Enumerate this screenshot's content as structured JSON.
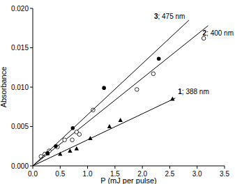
{
  "chart_data": {
    "type": "scatter",
    "x_label": "P (mJ per pulse)",
    "y_label": "Absorbance",
    "xlim": [
      0,
      3.5
    ],
    "xticks": [
      {
        "value": 0,
        "label": "0.0"
      },
      {
        "value": 0.5,
        "label": "0.5"
      },
      {
        "value": 1,
        "label": "1.0"
      },
      {
        "value": 1.5,
        "label": "1.5"
      },
      {
        "value": 2,
        "label": "2.0"
      },
      {
        "value": 2.5,
        "label": "2.5"
      },
      {
        "value": 3,
        "label": "3.0"
      },
      {
        "value": 3.5,
        "label": "3.5"
      }
    ],
    "ylim": [
      0,
      0.02
    ],
    "yticks": [
      {
        "value": 0,
        "label": "0.000"
      },
      {
        "value": 0.005,
        "label": "0.005"
      },
      {
        "value": 0.01,
        "label": "0.010"
      },
      {
        "value": 0.015,
        "label": "0.015"
      },
      {
        "value": 0.02,
        "label": "0.020"
      }
    ],
    "grid": false,
    "series": [
      {
        "name": "1; 388 nm",
        "color": "#000000",
        "marker": "triangle",
        "x": [
          0.27,
          0.5,
          0.68,
          0.8,
          1.05,
          1.4,
          1.6,
          2.55
        ],
        "values": [
          0.0016,
          0.0015,
          0.0019,
          0.0022,
          0.0035,
          0.005,
          0.0058,
          0.0085
        ],
        "fit_x": [
          0,
          2.6
        ],
        "fit_values": [
          0,
          0.0086
        ]
      },
      {
        "name": "2; 400 nm",
        "color": "#000000",
        "marker": "open-circle",
        "x": [
          0.15,
          0.22,
          0.3,
          0.45,
          0.58,
          0.72,
          0.8,
          0.85,
          1.1,
          1.9,
          2.2,
          3.12
        ],
        "values": [
          0.0012,
          0.0015,
          0.0019,
          0.0024,
          0.0033,
          0.0033,
          0.0043,
          0.004,
          0.0071,
          0.0097,
          0.0117,
          0.0162
        ],
        "fit_x": [
          0,
          3.2
        ],
        "fit_values": [
          0,
          0.0178
        ]
      },
      {
        "name": "3; 475 nm",
        "color": "#000000",
        "marker": "filled-circle",
        "x": [
          0.27,
          0.42,
          0.73,
          1.3,
          2.3
        ],
        "values": [
          0.0016,
          0.0025,
          0.0048,
          0.0099,
          0.0136
        ],
        "fit_x": [
          0,
          2.85
        ],
        "fit_values": [
          0,
          0.0185
        ]
      }
    ]
  }
}
